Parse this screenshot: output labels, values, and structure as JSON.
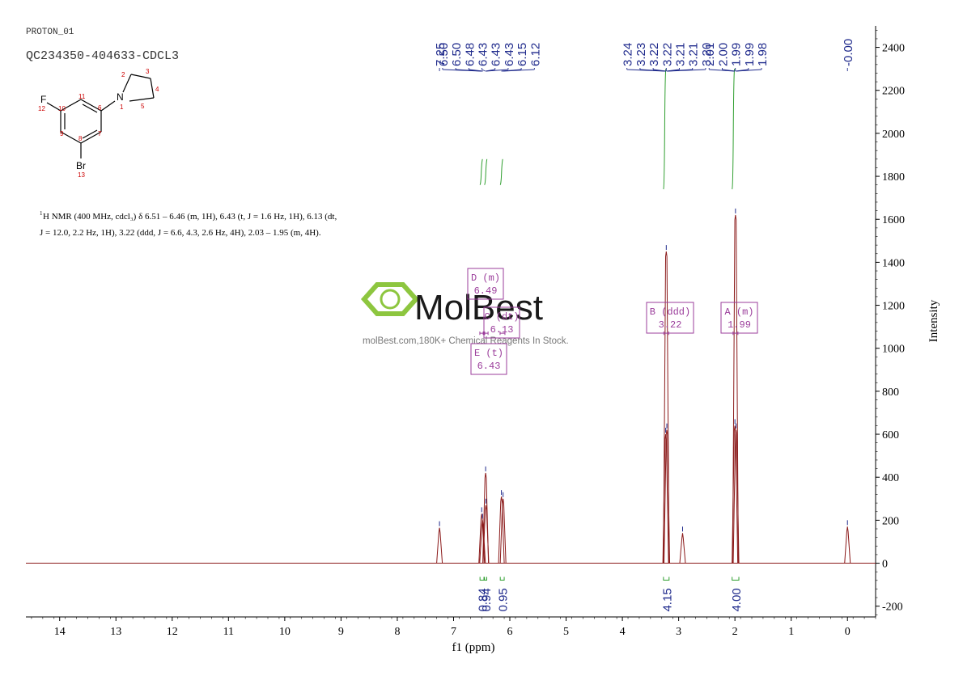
{
  "header": {
    "experiment": "PROTON_01",
    "sample": "QC234350-404633-CDCL3"
  },
  "molecule": {
    "atoms": {
      "F": "F",
      "F_num": "12",
      "Br": "Br",
      "Br_num": "13",
      "N": "N",
      "N_num": "1",
      "c2": "2",
      "c3": "3",
      "c4": "4",
      "c5": "5",
      "c6": "6",
      "c7": "7",
      "c8": "8",
      "c9": "9",
      "c10": "10",
      "c11": "11"
    },
    "colors": {
      "bond": "#000000",
      "number": "#cc0000"
    }
  },
  "nmr_text": {
    "sup": "1",
    "line1": "H NMR (400 MHz, cdcl₃) δ 6.51 – 6.46 (m, 1H), 6.43 (t, J = 1.6 Hz, 1H), 6.13 (dt,",
    "line2": "J = 12.0, 2.2 Hz, 1H), 3.22 (ddd, J = 6.6, 4.3, 2.6 Hz, 4H), 2.03 – 1.95 (m, 4H)."
  },
  "watermark": {
    "brand": "MolBest",
    "tagline": "molBest.com,180K+ Chemical Reagents In Stock.",
    "color": "#8dc63f"
  },
  "chart_data": {
    "type": "line",
    "xlabel": "f1 (ppm)",
    "ylabel": "Intensity",
    "xlim": [
      14.6,
      -0.5
    ],
    "ylim": [
      -250,
      2500
    ],
    "x_ticks": [
      14,
      13,
      12,
      11,
      10,
      9,
      8,
      7,
      6,
      5,
      4,
      3,
      2,
      1,
      0
    ],
    "y_ticks": [
      2400,
      2200,
      2000,
      1800,
      1600,
      1400,
      1200,
      1000,
      800,
      600,
      400,
      200,
      0,
      -200
    ],
    "colors": {
      "spectrum": "#8b1a1a",
      "label": "#1f2a8c",
      "integral": "#2e9e2e",
      "multiplet": "#9b3d9b"
    },
    "peaks": [
      {
        "ppm": 7.25,
        "height": 165
      },
      {
        "ppm": 6.5,
        "height": 230
      },
      {
        "ppm": 6.485,
        "height": 200
      },
      {
        "ppm": 6.43,
        "height": 420
      },
      {
        "ppm": 6.425,
        "height": 270
      },
      {
        "ppm": 6.15,
        "height": 310
      },
      {
        "ppm": 6.12,
        "height": 300
      },
      {
        "ppm": 3.23,
        "height": 600
      },
      {
        "ppm": 3.22,
        "height": 1450
      },
      {
        "ppm": 3.21,
        "height": 620
      },
      {
        "ppm": 2.93,
        "height": 140
      },
      {
        "ppm": 2.0,
        "height": 640
      },
      {
        "ppm": 1.99,
        "height": 1620
      },
      {
        "ppm": 1.98,
        "height": 620
      },
      {
        "ppm": 0.0,
        "height": 170
      }
    ],
    "peak_labels": [
      {
        "text": "7.25",
        "ppm": 7.25
      },
      {
        "text": "6.50",
        "ppm": 6.5
      },
      {
        "text": "6.50",
        "ppm": 6.495
      },
      {
        "text": "6.48",
        "ppm": 6.48
      },
      {
        "text": "6.43",
        "ppm": 6.435
      },
      {
        "text": "6.43",
        "ppm": 6.43
      },
      {
        "text": "6.43",
        "ppm": 6.425
      },
      {
        "text": "6.15",
        "ppm": 6.15
      },
      {
        "text": "6.12",
        "ppm": 6.12
      },
      {
        "text": "3.24",
        "ppm": 3.24
      },
      {
        "text": "3.23",
        "ppm": 3.23
      },
      {
        "text": "3.22",
        "ppm": 3.225
      },
      {
        "text": "3.22",
        "ppm": 3.22
      },
      {
        "text": "3.21",
        "ppm": 3.215
      },
      {
        "text": "3.21",
        "ppm": 3.21
      },
      {
        "text": "3.20",
        "ppm": 3.2
      },
      {
        "text": "2.01",
        "ppm": 2.01
      },
      {
        "text": "2.00",
        "ppm": 2.0
      },
      {
        "text": "1.99",
        "ppm": 1.99
      },
      {
        "text": "1.99",
        "ppm": 1.985
      },
      {
        "text": "1.98",
        "ppm": 1.98
      },
      {
        "text": "-0.00",
        "ppm": 0.0
      }
    ],
    "integrals": [
      {
        "value": "0.84",
        "start": 6.53,
        "end": 6.46
      },
      {
        "value": "0.94",
        "start": 6.45,
        "end": 6.41
      },
      {
        "value": "0.95",
        "start": 6.17,
        "end": 6.1
      },
      {
        "value": "4.15",
        "start": 3.27,
        "end": 3.17
      },
      {
        "value": "4.00",
        "start": 2.05,
        "end": 1.93
      }
    ],
    "multiplets": [
      {
        "name": "D",
        "type": "(m)",
        "shift": "6.49",
        "ppm": 6.49
      },
      {
        "name": "C",
        "type": "(dt)",
        "shift": "6.13",
        "ppm": 6.13
      },
      {
        "name": "E",
        "type": "(t)",
        "shift": "6.43",
        "ppm": 6.43
      },
      {
        "name": "B",
        "type": "(ddd)",
        "shift": "3.22",
        "ppm": 3.22
      },
      {
        "name": "A",
        "type": "(m)",
        "shift": "1.99",
        "ppm": 1.99
      }
    ]
  }
}
